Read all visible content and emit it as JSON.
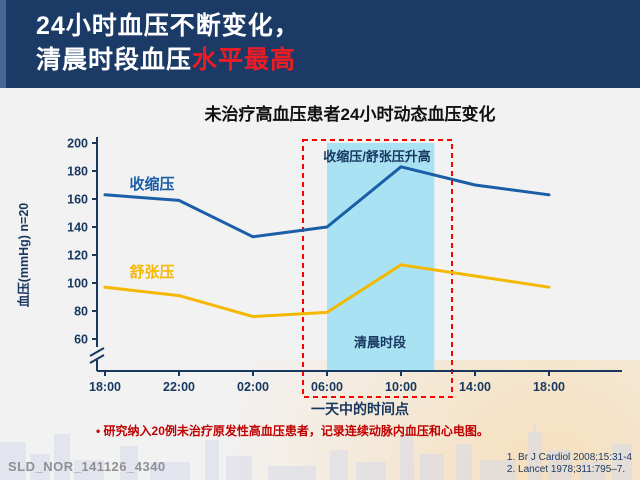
{
  "header": {
    "line1": "24小时血压不断变化，",
    "line2_white": "清晨时段血压",
    "line2_red": "水平最高"
  },
  "chart_data": {
    "type": "line",
    "title": "未治疗高血压患者24小时动态血压变化",
    "xlabel": "一天中的时间点",
    "ylabel": "血压(mmHg) n=20",
    "x_labels": [
      "18:00",
      "22:00",
      "02:00",
      "06:00",
      "10:00",
      "14:00",
      "18:00"
    ],
    "y_ticks": [
      200,
      180,
      160,
      140,
      120,
      100,
      80,
      60
    ],
    "ylim": [
      60,
      200
    ],
    "axis_break": true,
    "legend_position": "inline-labels",
    "grid": false,
    "axis_color": "#17375E",
    "series": [
      {
        "name": "收缩压",
        "color": "#1B5EA8",
        "values": [
          163,
          159,
          133,
          140,
          183,
          170,
          163
        ]
      },
      {
        "name": "舒张压",
        "color": "#F5B800",
        "values": [
          97,
          91,
          76,
          79,
          113,
          105,
          97
        ]
      }
    ],
    "highlight": {
      "label": "清晨时段",
      "annotation": "收缩压/舒张压升高",
      "x_start_index": 3,
      "x_end_index": 4.45,
      "fill": "#A9E2F3",
      "box_color": "#FF0000"
    }
  },
  "note": {
    "bullet": "•",
    "text": "研究纳入20例未治疗原发性高血压患者，记录连续动脉内血压和心电图。"
  },
  "footer": {
    "slide_id": "SLD_NOR_141126_4340",
    "references": [
      "1. Br J Cardiol 2008;15:31-4",
      "2. Lancet 1978;311:795–7."
    ]
  }
}
